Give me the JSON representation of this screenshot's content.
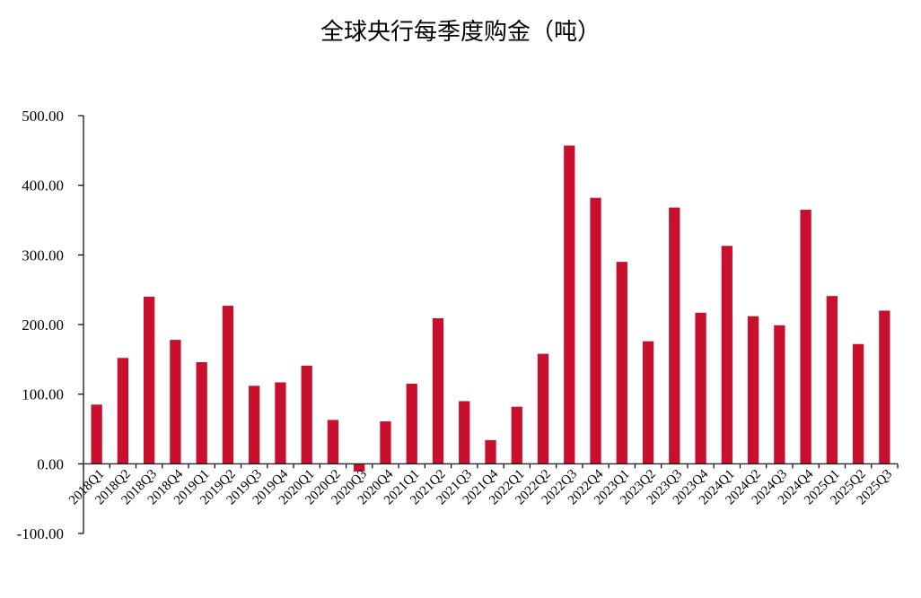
{
  "chart_data": {
    "type": "bar",
    "title": "全球央行每季度购金（吨）",
    "xlabel": "",
    "ylabel": "",
    "ylim": [
      -100,
      500
    ],
    "yticks": [
      "-100.00",
      "0.00",
      "100.00",
      "200.00",
      "300.00",
      "400.00",
      "500.00"
    ],
    "grid": false,
    "legend": "none",
    "bar_color": "#c8102e",
    "categories": [
      "2018Q1",
      "2018Q2",
      "2018Q3",
      "2018Q4",
      "2019Q1",
      "2019Q2",
      "2019Q3",
      "2019Q4",
      "2020Q1",
      "2020Q2",
      "2020Q3",
      "2020Q4",
      "2021Q1",
      "2021Q2",
      "2021Q3",
      "2021Q4",
      "2022Q1",
      "2022Q2",
      "2022Q3",
      "2022Q4",
      "2023Q1",
      "2023Q2",
      "2023Q3",
      "2023Q4",
      "2024Q1",
      "2024Q2",
      "2024Q3",
      "2024Q4",
      "2025Q1",
      "2025Q2",
      "2025Q3"
    ],
    "values": [
      85,
      152,
      240,
      178,
      146,
      227,
      112,
      117,
      141,
      63,
      -11,
      61,
      115,
      209,
      90,
      34,
      82,
      158,
      457,
      382,
      290,
      176,
      368,
      217,
      313,
      212,
      199,
      365,
      241,
      172,
      220
    ]
  }
}
